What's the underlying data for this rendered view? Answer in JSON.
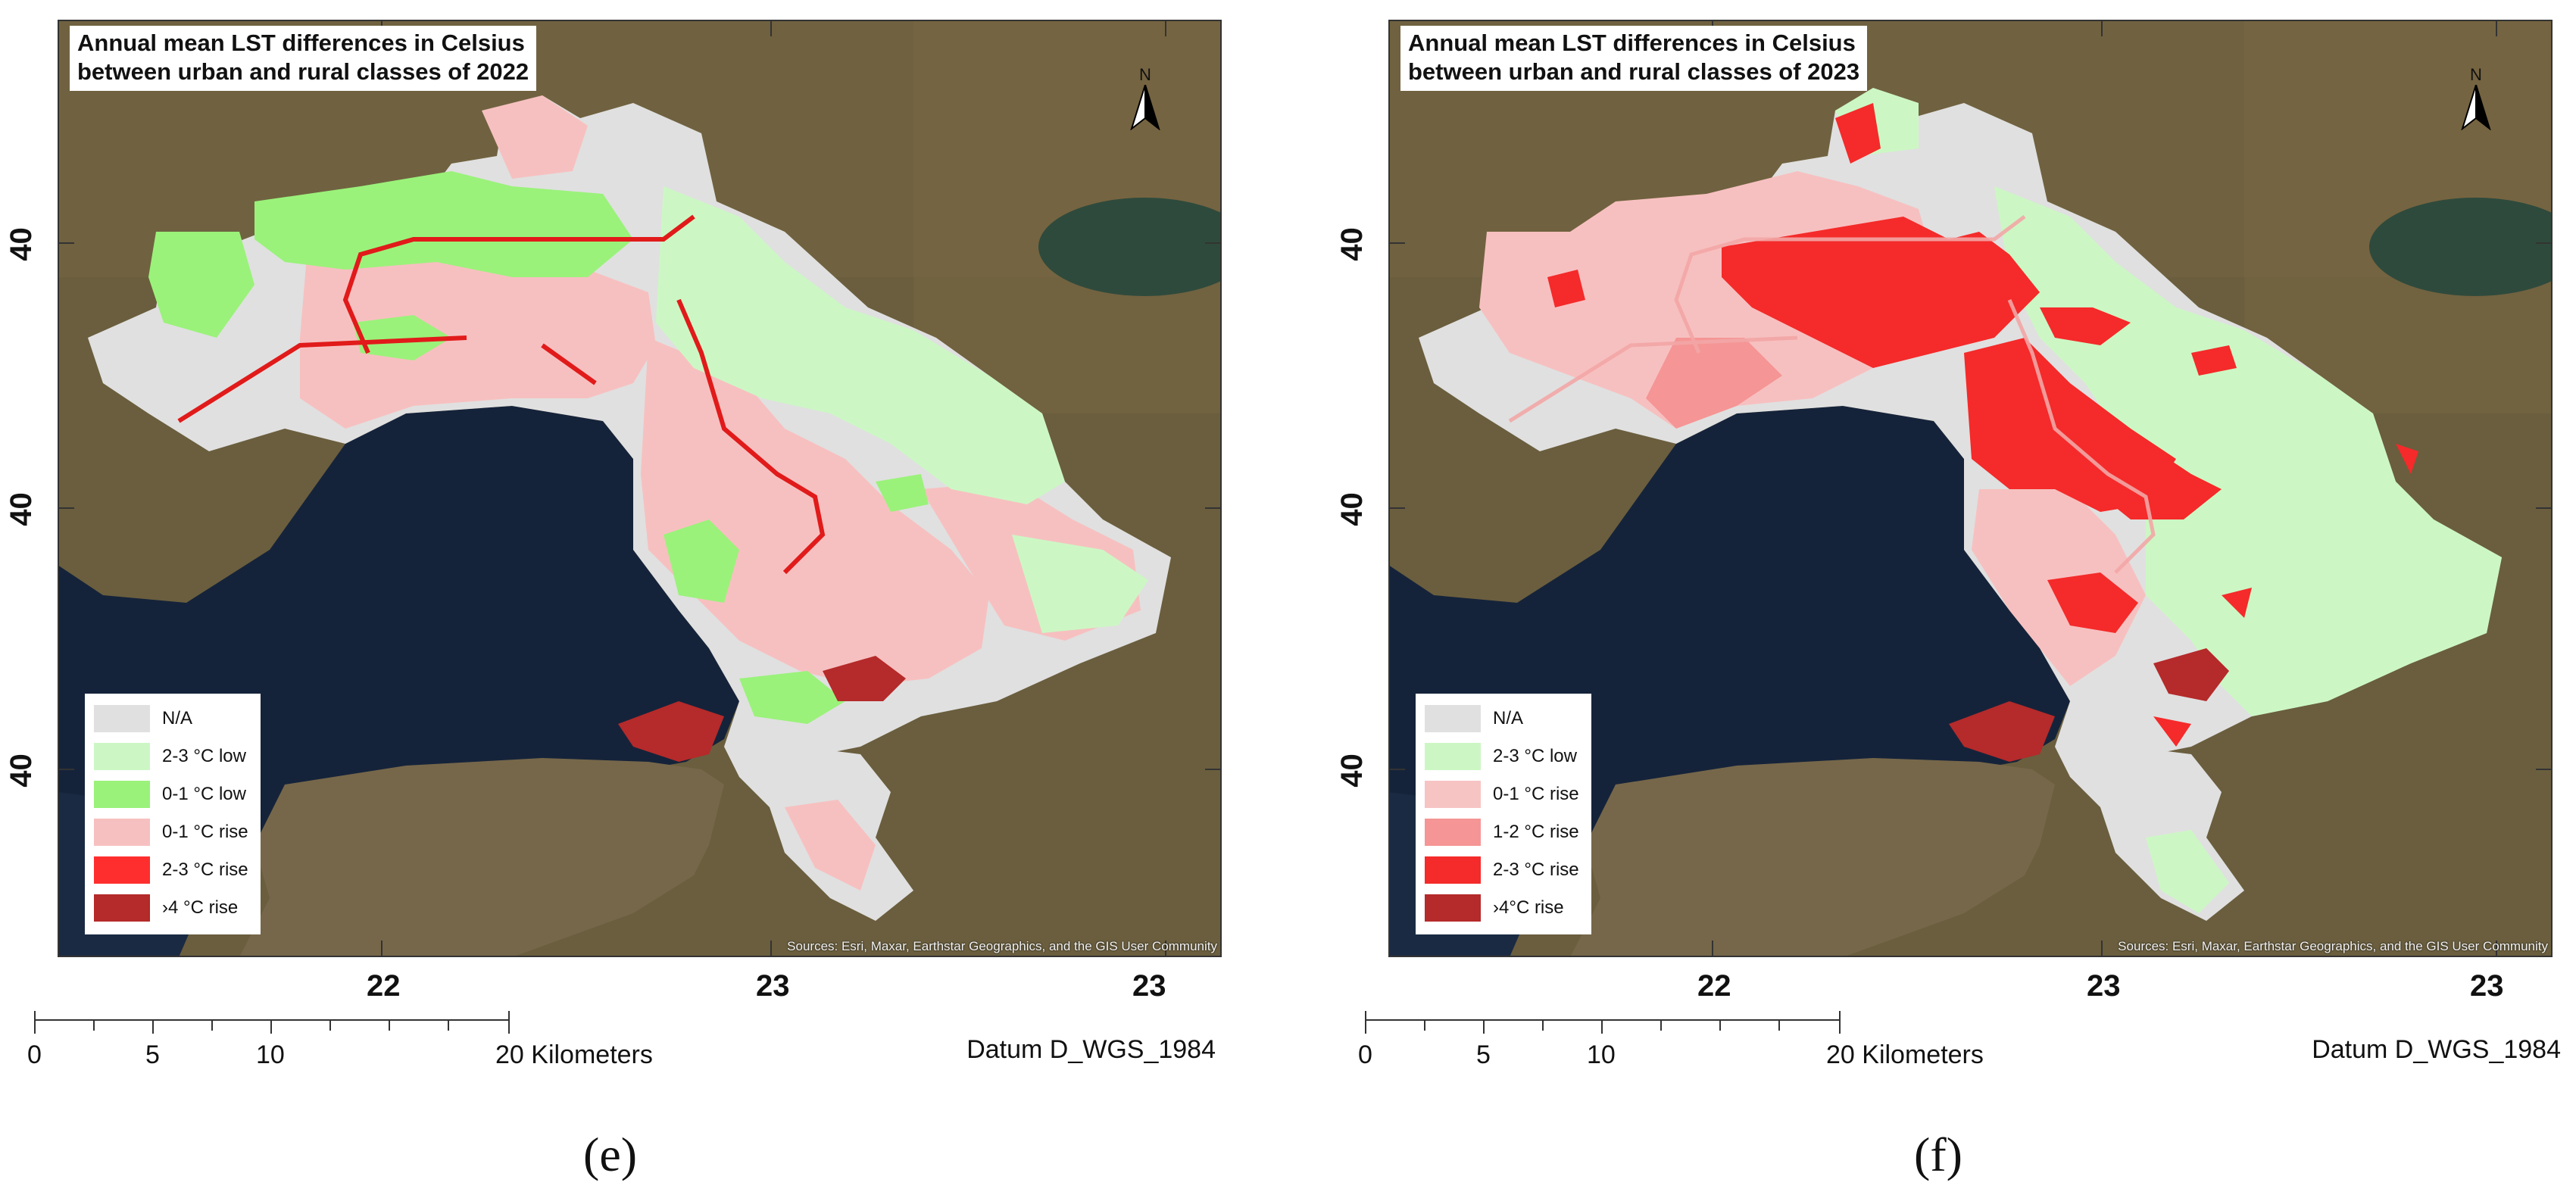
{
  "panels": {
    "e": {
      "title_line1": "Annual mean LST differences in Celsius",
      "title_line2": "between urban and rural classes of 2022",
      "legend": [
        {
          "label": "N/A",
          "color": "#e0e0e0"
        },
        {
          "label": "2-3 °C  low",
          "color": "#ccf7c4"
        },
        {
          "label": "0-1 °C  low",
          "color": "#9af27a"
        },
        {
          "label": "0-1 °C  rise",
          "color": "#f7c0c0"
        },
        {
          "label": "2-3 °C  rise",
          "color": "#ff2e2e"
        },
        {
          "label": "›4 °C  rise",
          "color": "#b52a2a"
        }
      ],
      "caption": "(e)"
    },
    "f": {
      "title_line1": "Annual mean LST differences in Celsius",
      "title_line2": "between urban and rural classes of 2023",
      "legend": [
        {
          "label": "N/A",
          "color": "#e0e0e0"
        },
        {
          "label": "2-3 °C low",
          "color": "#ccf7c4"
        },
        {
          "label": "0-1 °C  rise",
          "color": "#f7c4c4"
        },
        {
          "label": "1-2 °C  rise",
          "color": "#f59595"
        },
        {
          "label": "2-3 °C  rise",
          "color": "#f52a2a"
        },
        {
          "label": "›4°C  rise",
          "color": "#b52a2a"
        }
      ],
      "caption": "(f)"
    }
  },
  "map_common": {
    "north_label": "N",
    "source": "Sources: Esri, Maxar, Earthstar Geographics, and the GIS User Community",
    "lat_labels": [
      "40",
      "40",
      "40"
    ],
    "lon_labels": [
      "22",
      "23",
      "23"
    ],
    "scale_numbers": [
      "0",
      "5",
      "10",
      "20 Kilometers"
    ],
    "datum": "Datum D_WGS_1984"
  },
  "colors": {
    "sea": "#15233a",
    "land": "#6a5e3e",
    "na": "#e0e0e0",
    "green_light": "#ccf7c4",
    "green": "#9af27a",
    "pink": "#f7c0c0",
    "mid_red": "#f59595",
    "red": "#f52a2a",
    "dark_red": "#b52a2a",
    "road": "#e11a1a"
  }
}
